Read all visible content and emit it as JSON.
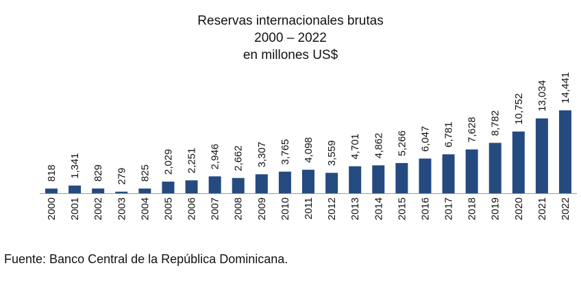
{
  "chart_data": {
    "type": "bar",
    "title": "Reservas internacionales brutas",
    "subtitle": "2000 – 2022",
    "unit_line": "en millones US$",
    "xlabel": "",
    "ylabel": "",
    "categories": [
      "2000",
      "2001",
      "2002",
      "2003",
      "2004",
      "2005",
      "2006",
      "2007",
      "2008",
      "2009",
      "2010",
      "2011",
      "2012",
      "2013",
      "2014",
      "2015",
      "2016",
      "2017",
      "2018",
      "2019",
      "2020",
      "2021",
      "2022"
    ],
    "values": [
      818,
      1341,
      829,
      279,
      825,
      2029,
      2251,
      2946,
      2662,
      3307,
      3765,
      4098,
      3559,
      4701,
      4862,
      5266,
      6047,
      6781,
      7628,
      8782,
      10752,
      13034,
      14441
    ],
    "value_labels": [
      "818",
      "1,341",
      "829",
      "279",
      "825",
      "2,029",
      "2,251",
      "2,946",
      "2,662",
      "3,307",
      "3,765",
      "4,098",
      "3,559",
      "4,701",
      "4,862",
      "5,266",
      "6,047",
      "6,781",
      "7,628",
      "8,782",
      "10,752",
      "13,034",
      "14,441"
    ],
    "ylim": [
      0,
      14441
    ],
    "grid": false,
    "legend": "none",
    "colors": {
      "bar": "#254a80",
      "axis": "#999999",
      "text": "#111111"
    }
  },
  "source_note": "Fuente: Banco Central de la República Dominicana."
}
